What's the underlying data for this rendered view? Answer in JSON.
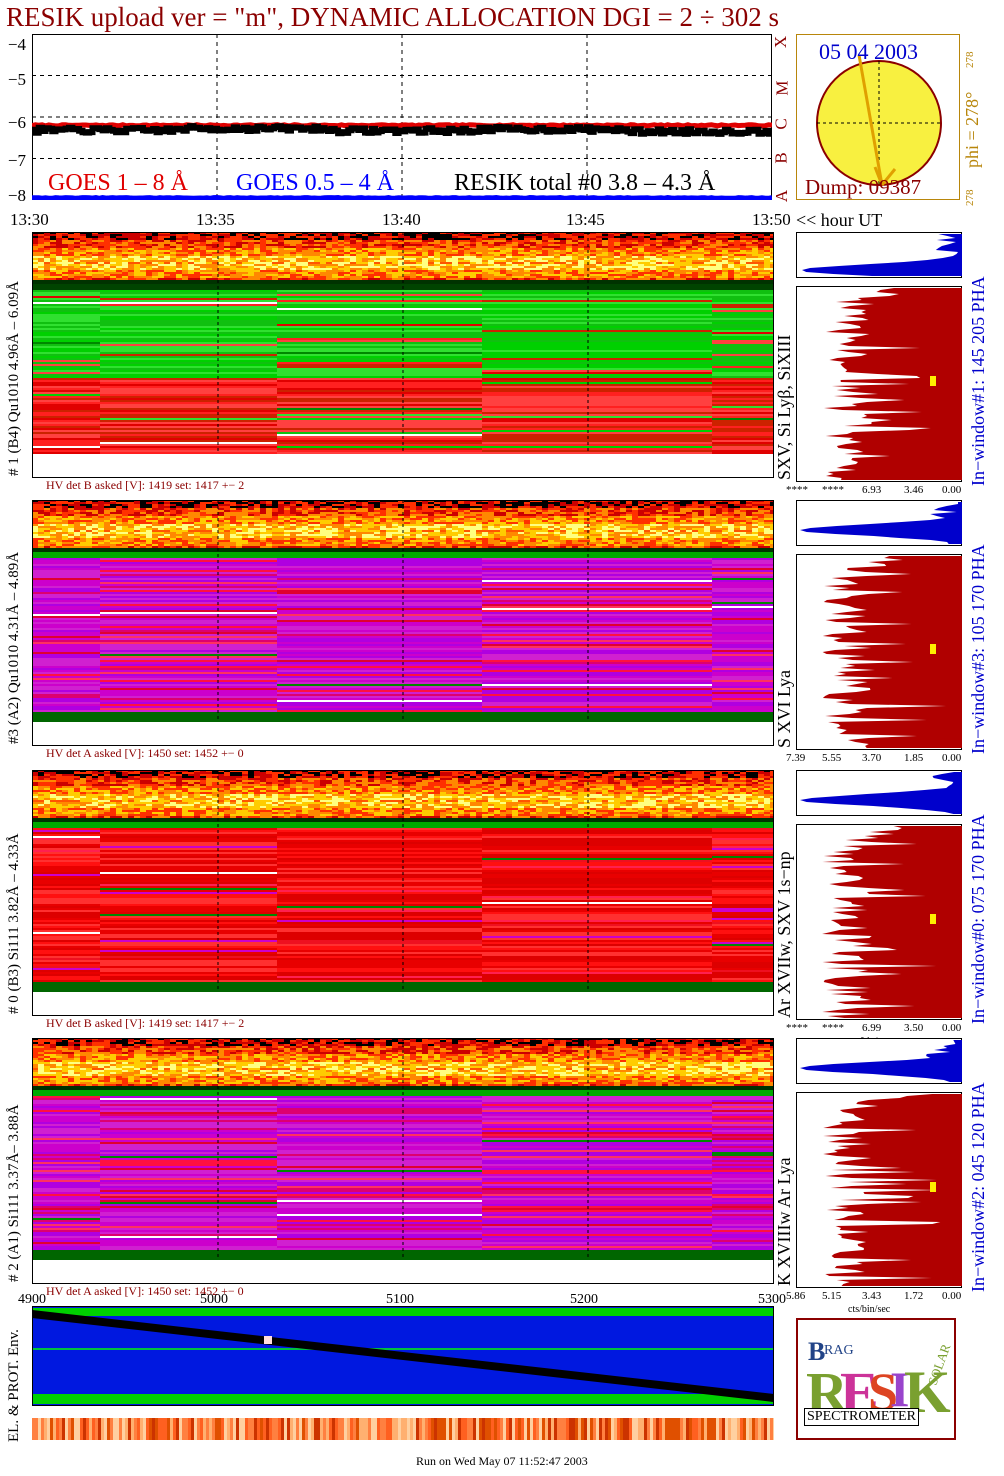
{
  "title": "RESIK upload ver = \"m\", DYNAMIC ALLOCATION  DGI =   2 ÷ 302 s",
  "goes": {
    "y_ticks": [
      "−4",
      "−5",
      "−6",
      "−7",
      "−8"
    ],
    "legend_goes18": "GOES 1 – 8 Å",
    "legend_goes054": "GOES 0.5 – 4 Å",
    "legend_resik": "RESIK total #0  3.8 – 4.3 Å",
    "x_ticks": [
      "13:30",
      "13:35",
      "13:40",
      "13:45",
      "13:50"
    ],
    "x_unit": "<< hour UT"
  },
  "goes_class_letters": [
    "X",
    "M",
    "C",
    "B",
    "A"
  ],
  "sun": {
    "date": "05 04 2003",
    "phi_label": "phi = 278°",
    "phi_small_top": "278",
    "phi_small_bottom": "278",
    "dump": "Dump: 09387"
  },
  "channels": [
    {
      "id": "ch1",
      "left_label": "# 1 (B4) Qu1010 4.96Å – 6.09Å",
      "mid_label": "SXV, Si Lyβ, SiXIII",
      "right_label": "In−window#1:  145 205 PHA",
      "hv": "HV det B asked [V]:  1419 set:  1417 +−    2",
      "axis": [
        "****",
        "****",
        "6.93",
        "3.46",
        "0.00"
      ],
      "axis_unit": "",
      "mode": "green",
      "seed": 11
    },
    {
      "id": "ch3",
      "left_label": "#3 (A2) Qu1010  4.31Å – 4.89Å",
      "mid_label": "S XVI Lya",
      "right_label": "In−window#3:  105 170 PHA",
      "hv": "HV det A asked [V]:  1450 set:  1452 +−    0",
      "axis": [
        "7.39",
        "5.55",
        "3.70",
        "1.85",
        "0.00"
      ],
      "axis_unit": "",
      "mode": "purple",
      "seed": 23
    },
    {
      "id": "ch0",
      "left_label": "# 0 (B3) Si111  3.82Å – 4.33Å",
      "mid_label": "Ar XVIIw, SXV 1s−np",
      "right_label": "In−window#0:  075 170 PHA",
      "hv": "HV det B asked [V]:  1419 set:  1417 +−    2",
      "axis": [
        "****",
        "****",
        "6.99",
        "3.50",
        "0.00"
      ],
      "axis_unit": "cts/bin/sec",
      "mode": "red",
      "seed": 37
    },
    {
      "id": "ch2",
      "left_label": "# 2 (A1) Si111  3.37Å– 3.88Å",
      "mid_label": "K XVIIIw  Ar Lya",
      "right_label": "In−window#2:  045 120 PHA",
      "hv": "HV det A asked [V]:  1450 set:  1452 +−    0",
      "axis": [
        "5.86",
        "5.15",
        "3.43",
        "1.72",
        "0.00"
      ],
      "axis_unit": "cts/bin/sec",
      "mode": "purple",
      "seed": 51
    }
  ],
  "env": {
    "x_ticks": [
      "4900",
      "5000",
      "5100",
      "5200",
      "5300"
    ],
    "label": "EL. & PROT. Env."
  },
  "logo": {
    "spectrometer": "SPECTROMETER"
  },
  "footer": "Run on Wed May 07 11:52:47 2003",
  "chart_data": [
    {
      "type": "line",
      "ylim": [
        -8,
        -4
      ],
      "ylabel": "",
      "xlabel": "<< hour UT",
      "x_range": [
        "13:30",
        "13:50"
      ],
      "series": [
        {
          "name": "GOES 1 – 8 Å",
          "values": [
            -6.2,
            -6.2,
            -6.2,
            -6.2,
            -6.2
          ]
        },
        {
          "name": "GOES 0.5 – 4 Å",
          "values": [
            -7.95,
            -7.95,
            -7.95,
            -7.95,
            -7.95
          ]
        },
        {
          "name": "RESIK total #0  3.8 – 4.3 Å",
          "values": [
            -6.32,
            -6.28,
            -6.33,
            -6.3,
            -6.35
          ]
        }
      ]
    },
    {
      "type": "line",
      "x_range": [
        4900,
        5300
      ],
      "series": [
        {
          "name": "",
          "x": [
            4900,
            5300
          ],
          "values": [
            0.92,
            0.08
          ]
        }
      ]
    }
  ],
  "colors": {
    "title": "#8b0000",
    "goes18": "#e00000",
    "goes054": "#0000ff",
    "spectrum_fill": "#b00000",
    "hist_fill": "#0000cc",
    "env_blue": "#0018e0",
    "env_green": "#00d000"
  }
}
